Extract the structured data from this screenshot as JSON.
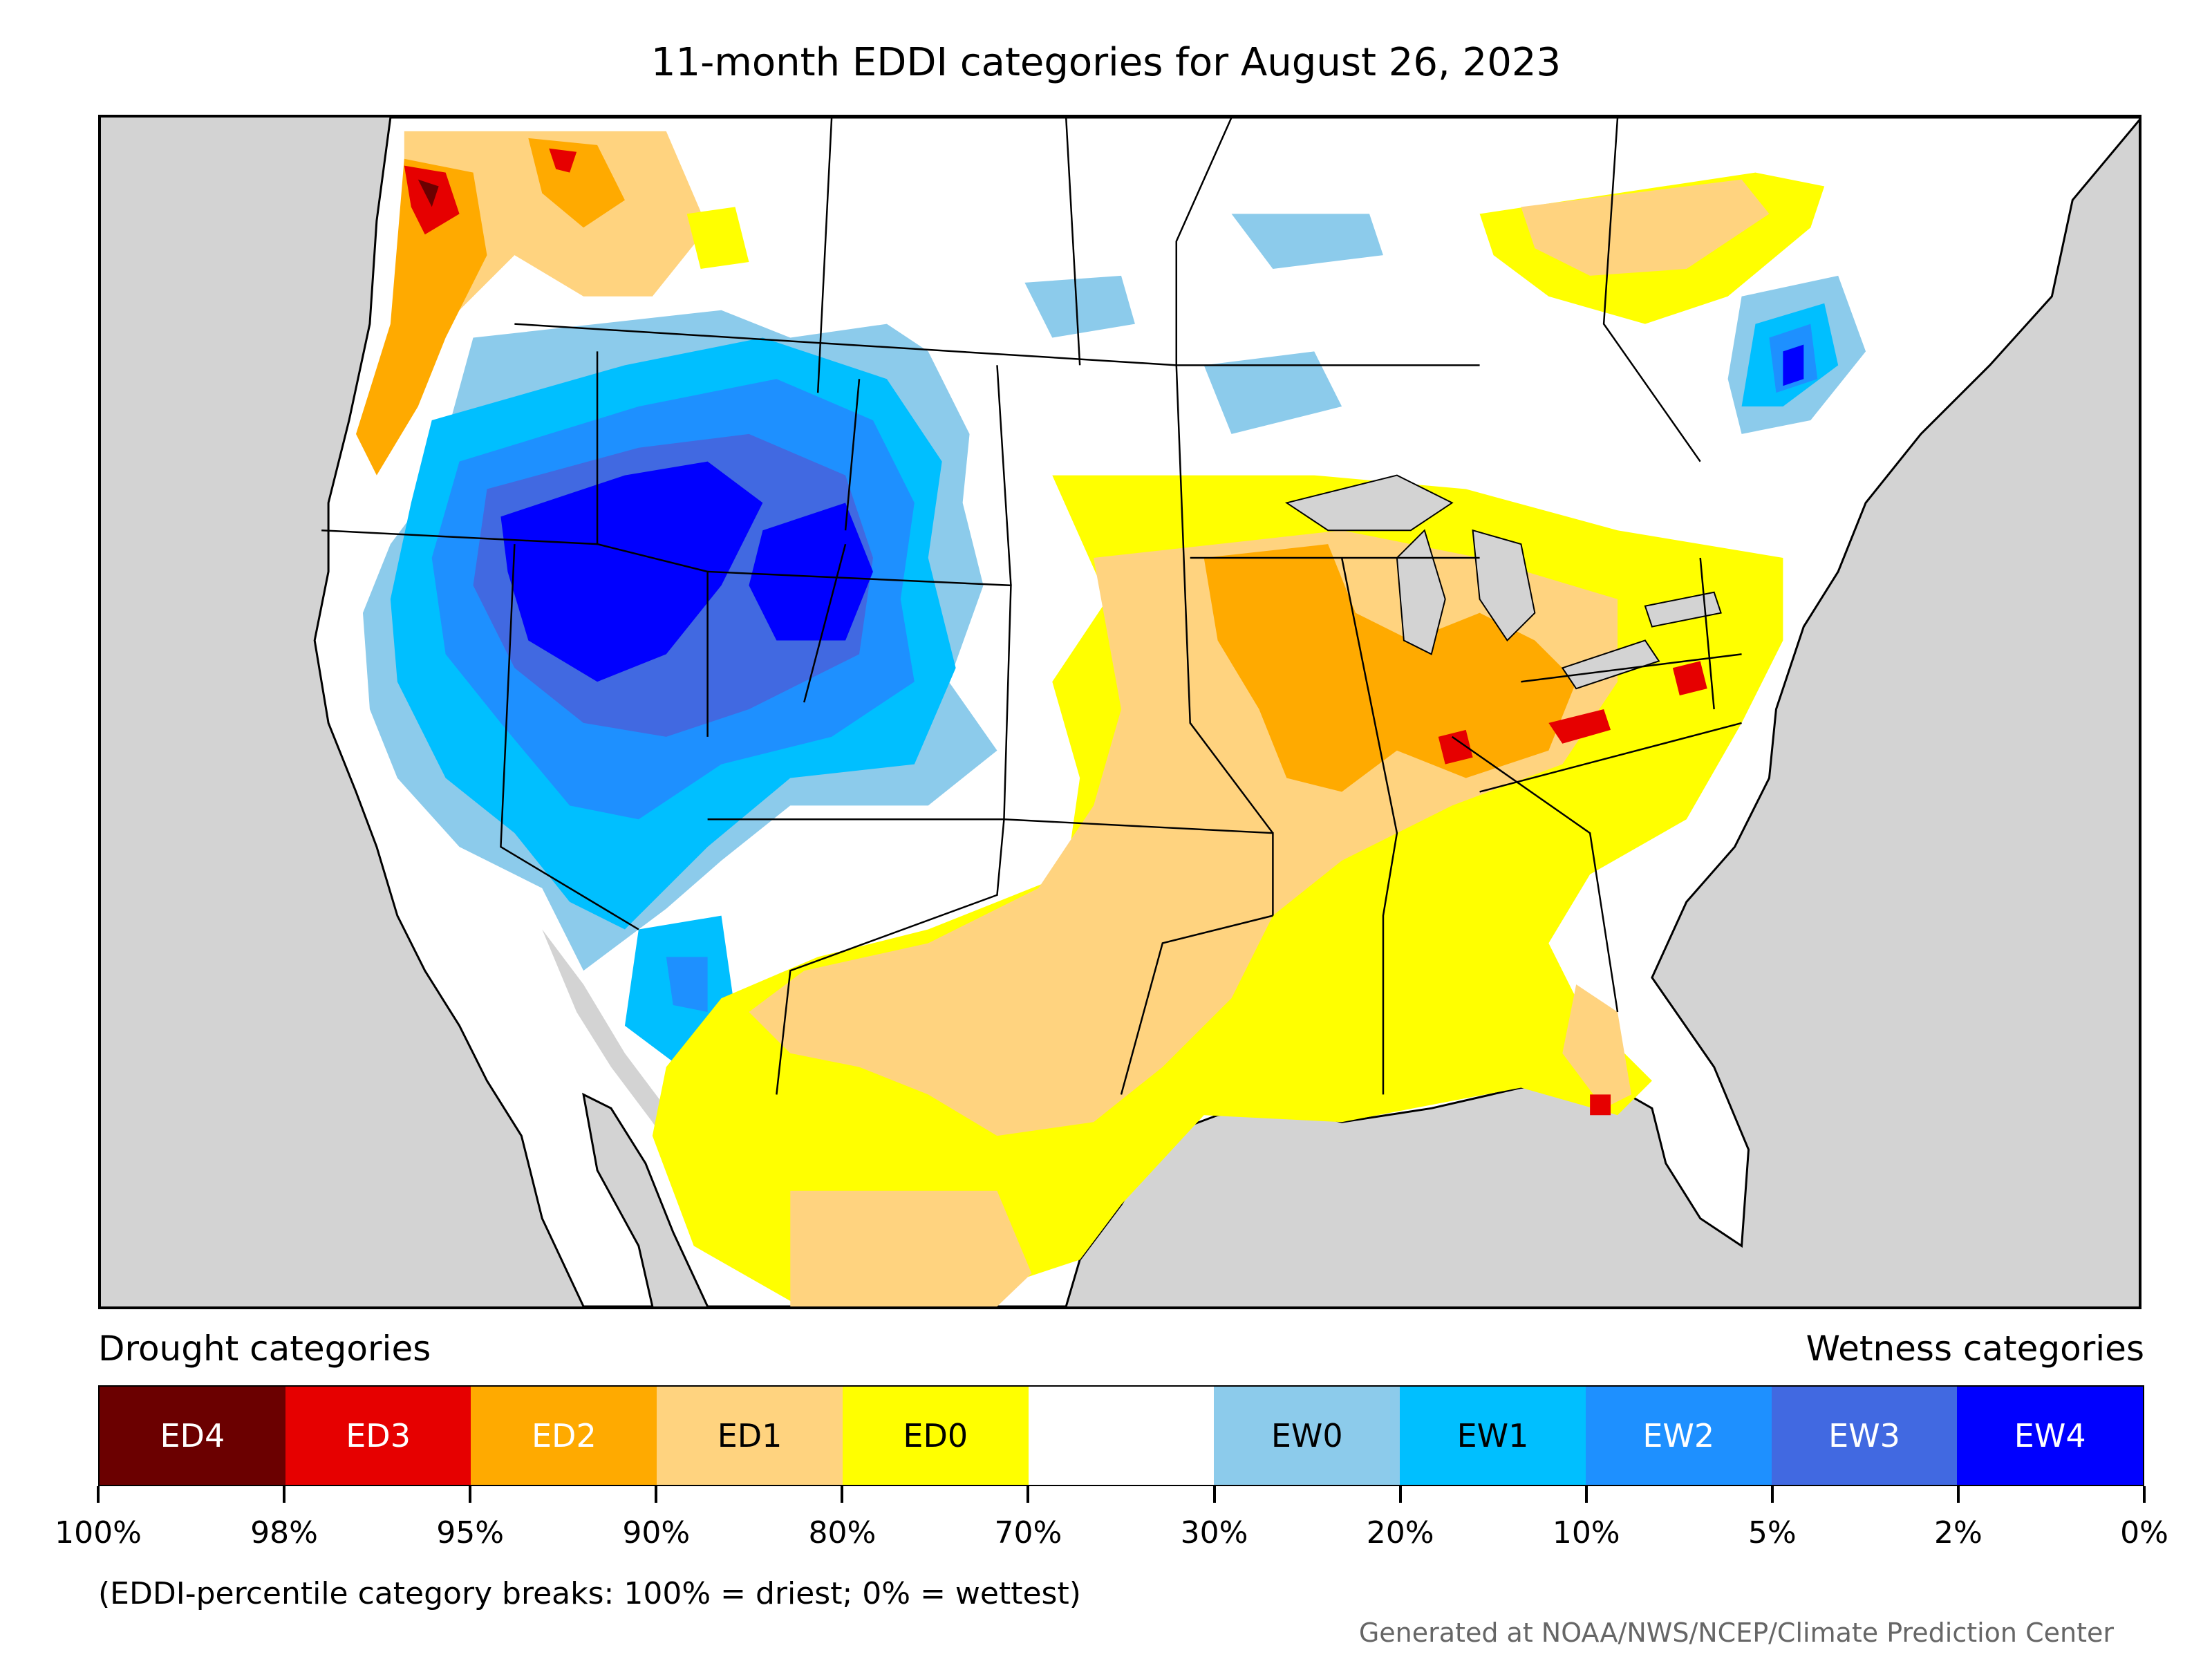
{
  "title": "11-month EDDI categories for August 26, 2023",
  "legend": {
    "drought_heading": "Drought categories",
    "wetness_heading": "Wetness categories",
    "categories": [
      {
        "label": "ED4",
        "color": "#6b0000",
        "text_color": "#ffffff"
      },
      {
        "label": "ED3",
        "color": "#e60000",
        "text_color": "#ffffff"
      },
      {
        "label": "ED2",
        "color": "#ffaa00",
        "text_color": "#ffffff"
      },
      {
        "label": "ED1",
        "color": "#ffd37f",
        "text_color": "#000000"
      },
      {
        "label": "ED0",
        "color": "#ffff00",
        "text_color": "#000000"
      },
      {
        "label": "",
        "color": "#ffffff",
        "text_color": "#000000"
      },
      {
        "label": "EW0",
        "color": "#8ccbeb",
        "text_color": "#000000"
      },
      {
        "label": "EW1",
        "color": "#00bfff",
        "text_color": "#000000"
      },
      {
        "label": "EW2",
        "color": "#1e90ff",
        "text_color": "#ffffff"
      },
      {
        "label": "EW3",
        "color": "#4169e1",
        "text_color": "#ffffff"
      },
      {
        "label": "EW4",
        "color": "#0000ff",
        "text_color": "#ffffff"
      }
    ],
    "breaks": [
      "100%",
      "98%",
      "95%",
      "90%",
      "80%",
      "70%",
      "30%",
      "20%",
      "10%",
      "5%",
      "2%",
      "0%"
    ]
  },
  "note": "(EDDI-percentile category breaks: 100% = driest; 0% = wettest)",
  "credit": "Generated at NOAA/NWS/NCEP/Climate Prediction Center",
  "colors": {
    "ocean": "#d3d3d3",
    "land": "#ffffff",
    "border": "#000000"
  }
}
